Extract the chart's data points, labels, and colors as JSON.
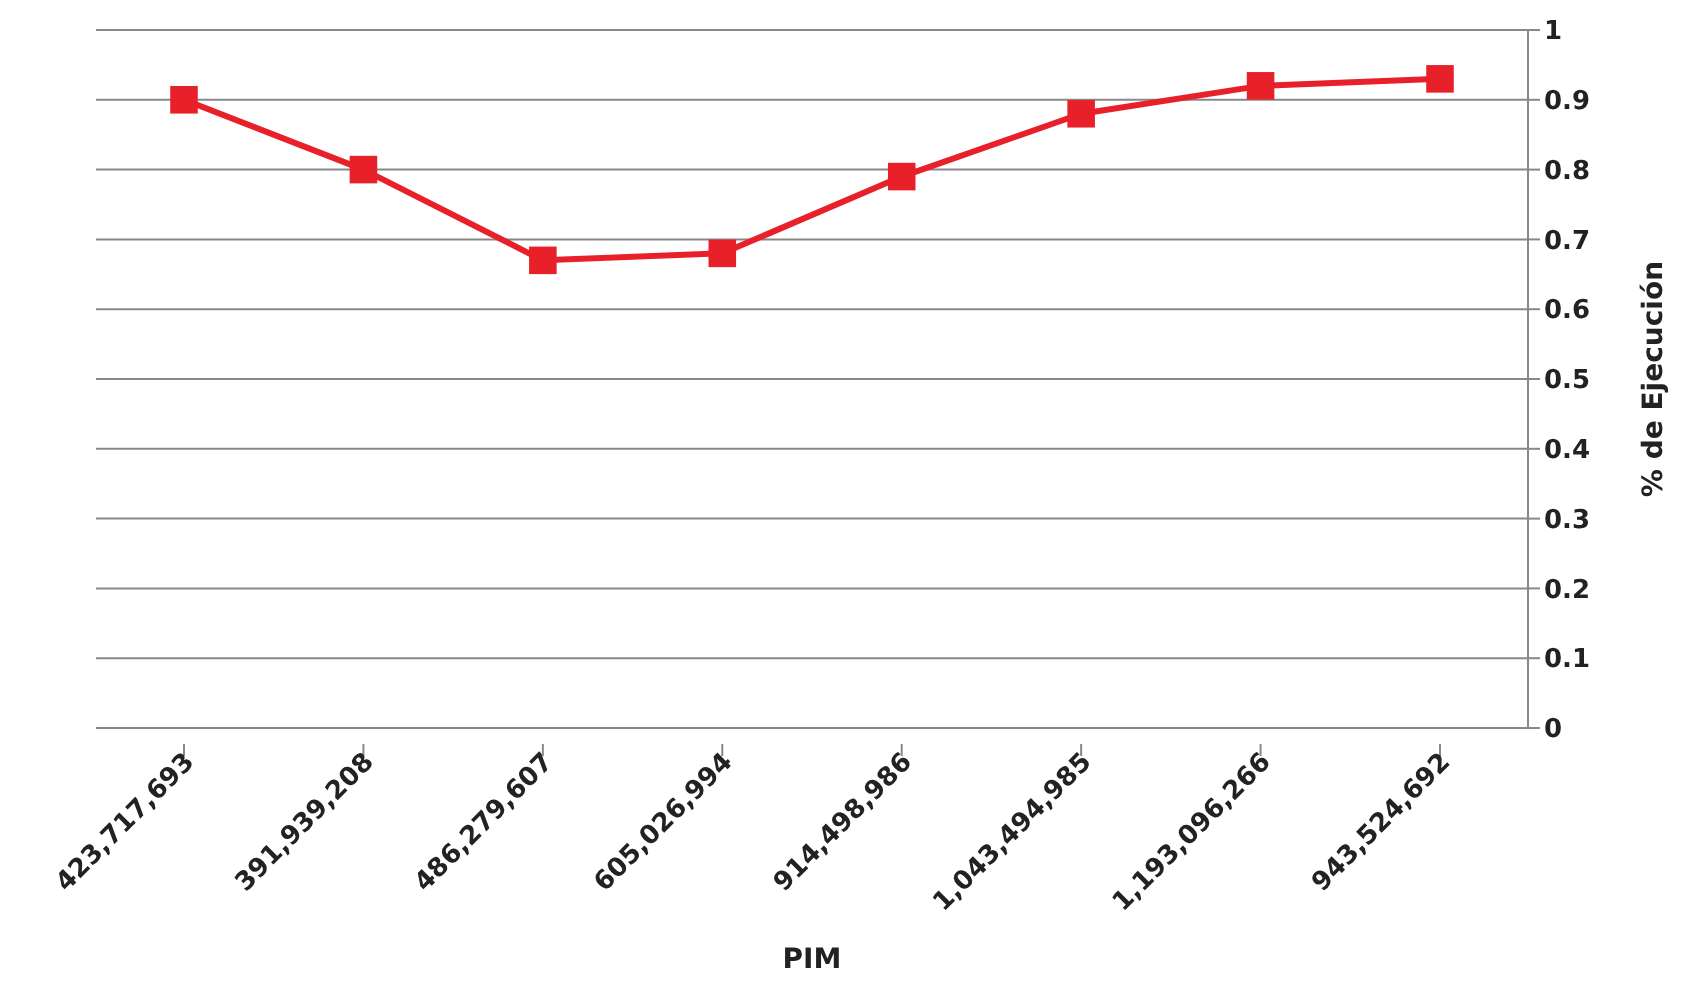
{
  "chart_data": {
    "type": "line",
    "xlabel": "PIM",
    "ylabel": "% de Ejecución",
    "categories": [
      "423,717,693",
      "391,939,208",
      "486,279,607",
      "605,026,994",
      "914,498,986",
      "1,043,494,985",
      "1,193,096,266",
      "943,524,692"
    ],
    "series": [
      {
        "color": "#e8202a",
        "values": [
          0.9,
          0.8,
          0.67,
          0.68,
          0.79,
          0.88,
          0.92,
          0.93
        ]
      }
    ],
    "ylim": [
      0,
      1
    ],
    "yticks": [
      0,
      0.1,
      0.2,
      0.3,
      0.4,
      0.5,
      0.6,
      0.7,
      0.8,
      0.9,
      1
    ],
    "grid": "y",
    "legend": false,
    "marker": "square",
    "line_style": "solid"
  }
}
